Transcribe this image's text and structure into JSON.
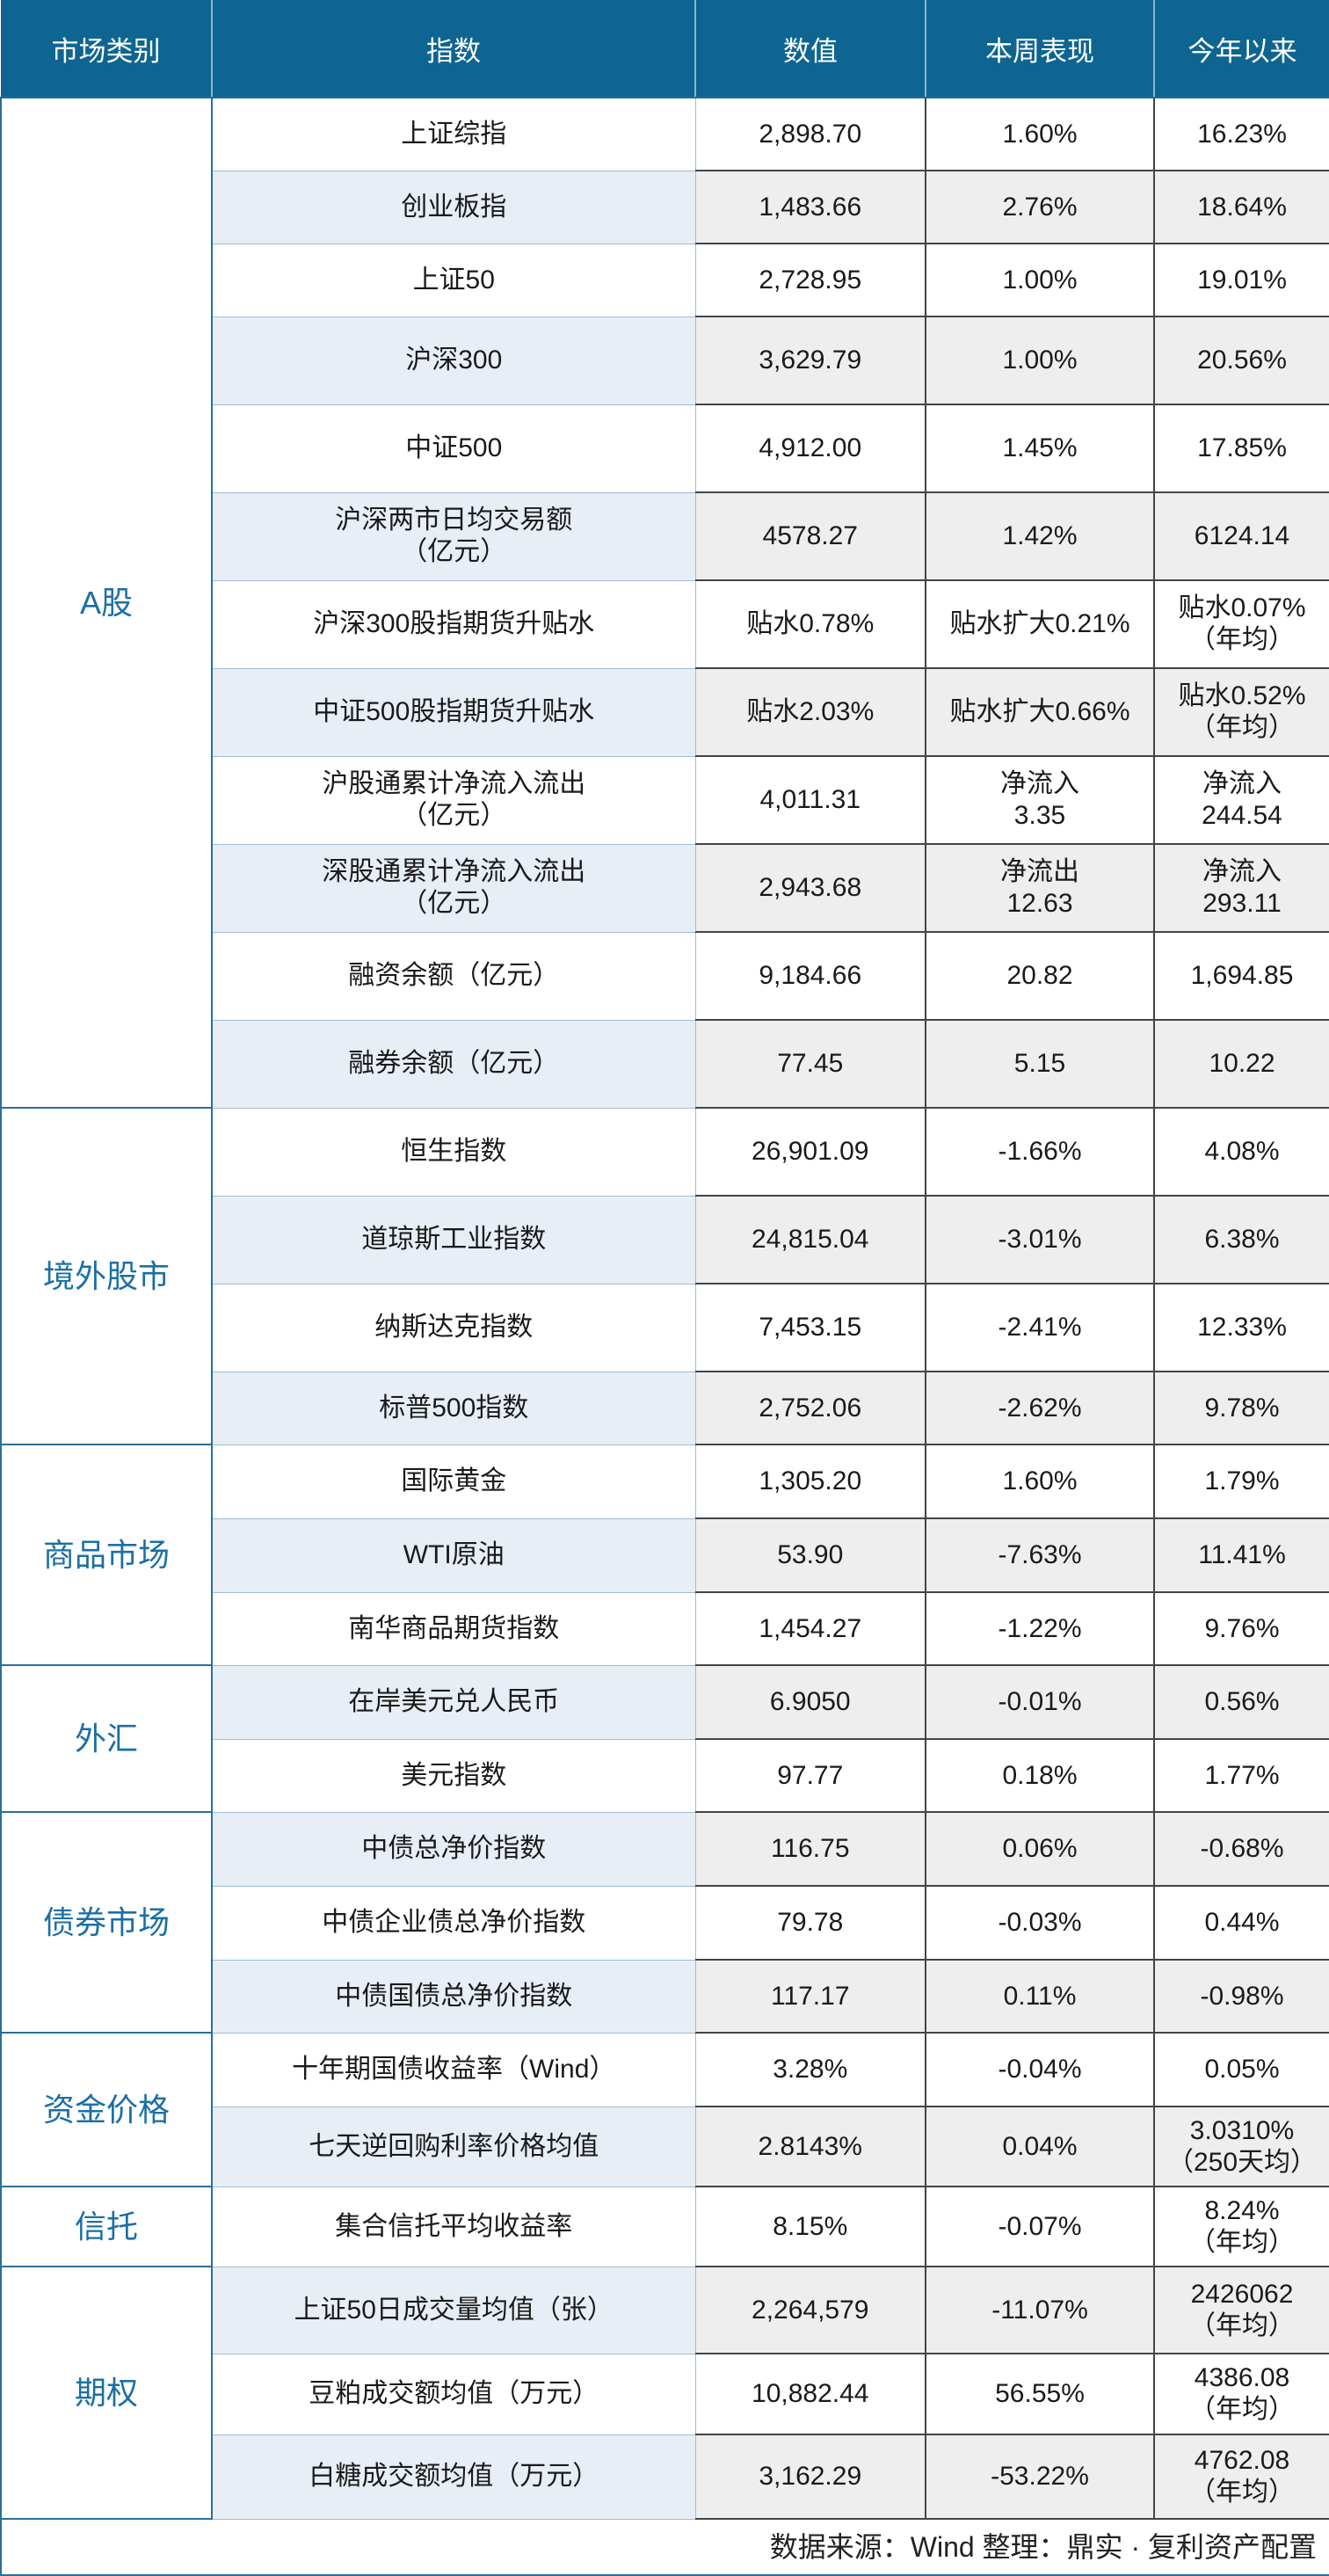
{
  "headers": [
    "市场类别",
    "指数",
    "数值",
    "本周表现",
    "今年以来"
  ],
  "groups": [
    {
      "category": "A股",
      "rows": [
        {
          "name": "上证综指",
          "value": "2,898.70",
          "week": "1.60%",
          "ytd": "16.23%",
          "h": 83
        },
        {
          "name": "创业板指",
          "value": "1,483.66",
          "week": "2.76%",
          "ytd": "18.64%",
          "h": 83
        },
        {
          "name": "上证50",
          "value": "2,728.95",
          "week": "1.00%",
          "ytd": "19.01%",
          "h": 83
        },
        {
          "name": "沪深300",
          "value": "3,629.79",
          "week": "1.00%",
          "ytd": "20.56%",
          "h": 100
        },
        {
          "name": "中证500",
          "value": "4,912.00",
          "week": "1.45%",
          "ytd": "17.85%",
          "h": 100
        },
        {
          "name": "沪深两市日均交易额\n（亿元）",
          "value": "4578.27",
          "week": "1.42%",
          "ytd": "6124.14",
          "h": 100
        },
        {
          "name": "沪深300股指期货升贴水",
          "value": "贴水0.78%",
          "week": "贴水扩大0.21%",
          "ytd": "贴水0.07%\n（年均）",
          "h": 100
        },
        {
          "name": "中证500股指期货升贴水",
          "value": "贴水2.03%",
          "week": "贴水扩大0.66%",
          "ytd": "贴水0.52%\n（年均）",
          "h": 100
        },
        {
          "name": "沪股通累计净流入流出\n（亿元）",
          "value": "4,011.31",
          "week": "净流入\n3.35",
          "ytd": "净流入\n244.54",
          "h": 100
        },
        {
          "name": "深股通累计净流入流出\n（亿元）",
          "value": "2,943.68",
          "week": "净流出\n12.63",
          "ytd": "净流入\n293.11",
          "h": 100
        },
        {
          "name": "融资余额（亿元）",
          "value": "9,184.66",
          "week": "20.82",
          "ytd": "1,694.85",
          "h": 100
        },
        {
          "name": "融券余额（亿元）",
          "value": "77.45",
          "week": "5.15",
          "ytd": "10.22",
          "h": 100
        }
      ]
    },
    {
      "category": "境外股市",
      "rows": [
        {
          "name": "恒生指数",
          "value": "26,901.09",
          "week": "-1.66%",
          "ytd": "4.08%",
          "h": 100
        },
        {
          "name": "道琼斯工业指数",
          "value": "24,815.04",
          "week": "-3.01%",
          "ytd": "6.38%",
          "h": 100
        },
        {
          "name": "纳斯达克指数",
          "value": "7,453.15",
          "week": "-2.41%",
          "ytd": "12.33%",
          "h": 100
        },
        {
          "name": "标普500指数",
          "value": "2,752.06",
          "week": "-2.62%",
          "ytd": "9.78%",
          "h": 83
        }
      ]
    },
    {
      "category": "商品市场",
      "rows": [
        {
          "name": "国际黄金",
          "value": "1,305.20",
          "week": "1.60%",
          "ytd": "1.79%",
          "h": 84
        },
        {
          "name": "WTI原油",
          "value": "53.90",
          "week": "-7.63%",
          "ytd": "11.41%",
          "h": 84
        },
        {
          "name": "南华商品期货指数",
          "value": "1,454.27",
          "week": "-1.22%",
          "ytd": "9.76%",
          "h": 83
        }
      ]
    },
    {
      "category": "外汇",
      "rows": [
        {
          "name": "在岸美元兑人民币",
          "value": "6.9050",
          "week": "-0.01%",
          "ytd": "0.56%",
          "h": 84
        },
        {
          "name": "美元指数",
          "value": "97.77",
          "week": "0.18%",
          "ytd": "1.77%",
          "h": 83
        }
      ]
    },
    {
      "category": "债券市场",
      "rows": [
        {
          "name": "中债总净价指数",
          "value": "116.75",
          "week": "0.06%",
          "ytd": "-0.68%",
          "h": 84
        },
        {
          "name": "中债企业债总净价指数",
          "value": "79.78",
          "week": "-0.03%",
          "ytd": "0.44%",
          "h": 84
        },
        {
          "name": "中债国债总净价指数",
          "value": "117.17",
          "week": "0.11%",
          "ytd": "-0.98%",
          "h": 83
        }
      ]
    },
    {
      "category": "资金价格",
      "rows": [
        {
          "name": "十年期国债收益率（Wind）",
          "value": "3.28%",
          "week": "-0.04%",
          "ytd": "0.05%",
          "h": 84
        },
        {
          "name": "七天逆回购利率价格均值",
          "value": "2.8143%",
          "week": "0.04%",
          "ytd": "3.0310%\n（250天均）",
          "h": 91
        }
      ]
    },
    {
      "category": "信托",
      "rows": [
        {
          "name": "集合信托平均收益率",
          "value": "8.15%",
          "week": "-0.07%",
          "ytd": "8.24%\n（年均）",
          "h": 91
        }
      ]
    },
    {
      "category": "期权",
      "rows": [
        {
          "name": "上证50日成交量均值（张）",
          "value": "2,264,579",
          "week": "-11.07%",
          "ytd": "2426062\n（年均）",
          "h": 99
        },
        {
          "name": "豆粕成交额均值（万元）",
          "value": "10,882.44",
          "week": "56.55%",
          "ytd": "4386.08\n（年均）",
          "h": 92
        },
        {
          "name": "白糖成交额均值（万元）",
          "value": "3,162.29",
          "week": "-53.22%",
          "ytd": "4762.08\n（年均）",
          "h": 96
        }
      ]
    }
  ],
  "footer": "数据来源：Wind 整理：鼎实 · 复利资产配置"
}
